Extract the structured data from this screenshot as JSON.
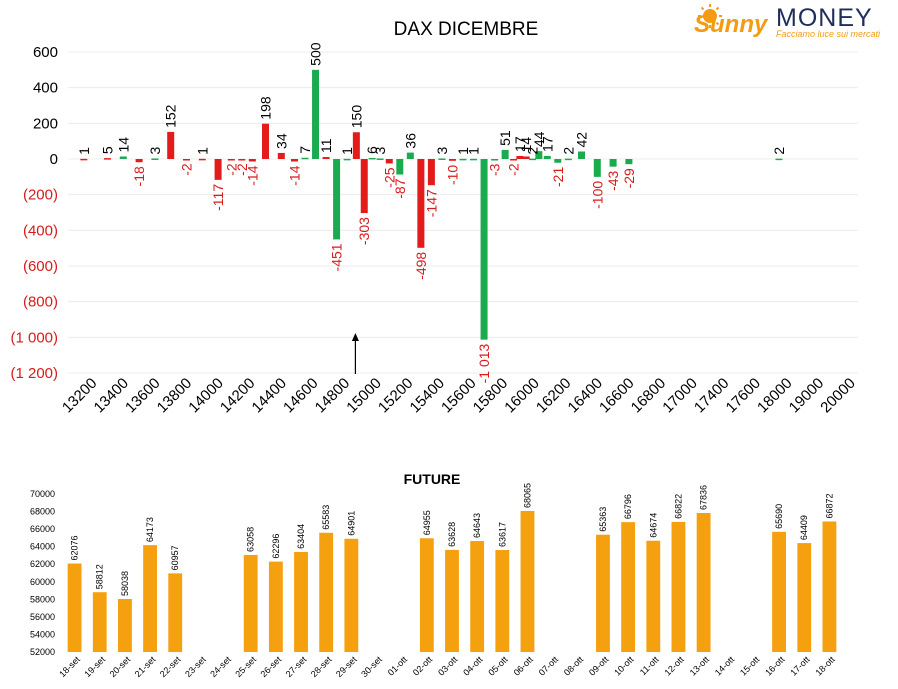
{
  "logo": {
    "brand_sunny": "Sunny",
    "brand_money": "MONEY",
    "tagline": "Facciamo luce sui mercati",
    "colors": {
      "sunny": "#f39c12",
      "money": "#1f2d5a",
      "tagline": "#f39c12"
    }
  },
  "colors": {
    "positive": "#1aab4f",
    "negative": "#e31b1b",
    "future": "#f5a00f",
    "negative_label": "#d81b1b"
  },
  "chart_data": [
    {
      "type": "bar",
      "title": "DAX DICEMBRE",
      "categories": [
        "13200",
        "13400",
        "13600",
        "13800",
        "14000",
        "14200",
        "14400",
        "14600",
        "14800",
        "15000",
        "15200",
        "15400",
        "15600",
        "15800",
        "16000",
        "16200",
        "16400",
        "16600",
        "16800",
        "17000",
        "17400",
        "17600",
        "18000",
        "19000",
        "20000"
      ],
      "ylim": [
        -1200,
        600
      ],
      "yticks": [
        600,
        400,
        200,
        0,
        -200,
        -400,
        -600,
        -800,
        -1000,
        -1200
      ],
      "ytick_labels": [
        "600",
        "400",
        "200",
        "0",
        "(200)",
        "(400)",
        "(600)",
        "(800)",
        "(1 000)",
        "(1 200)"
      ],
      "grid": true,
      "marker": {
        "type": "arrow",
        "category": "15000"
      },
      "series": [
        {
          "color": "#e31b1b",
          "points": [
            {
              "c": "13200",
              "v": 1,
              "label": "1"
            },
            {
              "c": "13400",
              "v": 5,
              "label": "5"
            },
            {
              "c": "13600",
              "v": -18,
              "label": "-18"
            },
            {
              "c": "13800",
              "v": 152,
              "label": "152"
            },
            {
              "c": "13800",
              "v": -2,
              "label": "-2"
            },
            {
              "c": "14000",
              "v": 1,
              "label": "1"
            },
            {
              "c": "14000",
              "v": -117,
              "label": "-117"
            },
            {
              "c": "14200",
              "v": -2,
              "label": "-2"
            },
            {
              "c": "14200",
              "v": -2,
              "label": "-2"
            },
            {
              "c": "14200",
              "v": -14,
              "label": "-14"
            },
            {
              "c": "14400",
              "v": 198,
              "label": "198"
            },
            {
              "c": "14400",
              "v": 34,
              "label": "34"
            },
            {
              "c": "14600",
              "v": -14,
              "label": "-14"
            },
            {
              "c": "14800",
              "v": 11,
              "label": "11"
            },
            {
              "c": "15000",
              "v": 150,
              "label": "150"
            },
            {
              "c": "15000",
              "v": -303,
              "label": "-303"
            },
            {
              "c": "15200",
              "v": -25,
              "label": "-25"
            },
            {
              "c": "15400",
              "v": -498,
              "label": "-498"
            },
            {
              "c": "15400",
              "v": -147,
              "label": "-147"
            },
            {
              "c": "15600",
              "v": -10,
              "label": "-10"
            },
            {
              "c": "16000",
              "v": -2,
              "label": "-2"
            },
            {
              "c": "16000",
              "v": 17,
              "label": "17"
            },
            {
              "c": "16000",
              "v": 14,
              "label": "14"
            }
          ]
        },
        {
          "color": "#1aab4f",
          "points": [
            {
              "c": "13400",
              "v": 14,
              "label": "14"
            },
            {
              "c": "13600",
              "v": 3,
              "label": "3"
            },
            {
              "c": "14600",
              "v": 7,
              "label": "7"
            },
            {
              "c": "14600",
              "v": 500,
              "label": "500"
            },
            {
              "c": "14800",
              "v": -451,
              "label": "-451"
            },
            {
              "c": "14800",
              "v": 1,
              "label": "1"
            },
            {
              "c": "15000",
              "v": 6,
              "label": "6"
            },
            {
              "c": "15000",
              "v": 3,
              "label": "3"
            },
            {
              "c": "15200",
              "v": -87,
              "label": "-87"
            },
            {
              "c": "15200",
              "v": 36,
              "label": "36"
            },
            {
              "c": "15400",
              "v": 3,
              "label": "3"
            },
            {
              "c": "15600",
              "v": 1,
              "label": "1"
            },
            {
              "c": "15600",
              "v": 1,
              "label": "1"
            },
            {
              "c": "15800",
              "v": -1013,
              "label": "-1 013"
            },
            {
              "c": "15800",
              "v": -3,
              "label": "-3"
            },
            {
              "c": "15800",
              "v": 51,
              "label": "51"
            },
            {
              "c": "16000",
              "v": 2,
              "label": "2"
            },
            {
              "c": "16000",
              "v": 44,
              "label": "44"
            },
            {
              "c": "16200",
              "v": 17,
              "label": "17"
            },
            {
              "c": "16200",
              "v": -21,
              "label": "-21"
            },
            {
              "c": "16200",
              "v": 2,
              "label": "2"
            },
            {
              "c": "16400",
              "v": 42,
              "label": "42"
            },
            {
              "c": "16400",
              "v": -100,
              "label": "-100"
            },
            {
              "c": "16600",
              "v": -43,
              "label": "-43"
            },
            {
              "c": "16600",
              "v": -29,
              "label": "-29"
            },
            {
              "c": "18000",
              "v": 2,
              "label": "2"
            }
          ]
        }
      ]
    },
    {
      "type": "bar",
      "title": "FUTURE",
      "categories": [
        "18-set",
        "19-set",
        "20-set",
        "21-set",
        "22-set",
        "23-set",
        "24-set",
        "25-set",
        "26-set",
        "27-set",
        "28-set",
        "29-set",
        "30-set",
        "01-ott",
        "02-ott",
        "03-ott",
        "04-ott",
        "05-ott",
        "06-ott",
        "07-ott",
        "08-ott",
        "09-ott",
        "10-ott",
        "11-ott",
        "12-ott",
        "13-ott",
        "14-ott",
        "15-ott",
        "16-ott",
        "17-ott",
        "18-ott"
      ],
      "values": [
        62076,
        58812,
        58038,
        64173,
        60957,
        null,
        null,
        63058,
        62296,
        63404,
        65583,
        64901,
        null,
        null,
        64955,
        63628,
        64643,
        63617,
        68065,
        null,
        null,
        65363,
        66796,
        64674,
        66822,
        67836,
        null,
        null,
        65690,
        64409,
        66872
      ],
      "value_labels": [
        "62076",
        "58812",
        "58038",
        "64173",
        "60957",
        "",
        "",
        "63058",
        "62296",
        "63404",
        "65583",
        "64901",
        "",
        "",
        "64955",
        "63628",
        "64643",
        "63617",
        "68065",
        "",
        "",
        "65363",
        "66796",
        "64674",
        "66822",
        "67836",
        "",
        "",
        "65690",
        "64409",
        "66872"
      ],
      "ylim": [
        52000,
        70000
      ],
      "yticks": [
        70000,
        68000,
        66000,
        64000,
        62000,
        60000,
        58000,
        56000,
        54000,
        52000
      ],
      "ytick_labels": [
        "70000",
        "68000",
        "66000",
        "64000",
        "62000",
        "60000",
        "58000",
        "56000",
        "54000",
        "52000"
      ],
      "grid": false,
      "color": "#f5a00f"
    }
  ]
}
